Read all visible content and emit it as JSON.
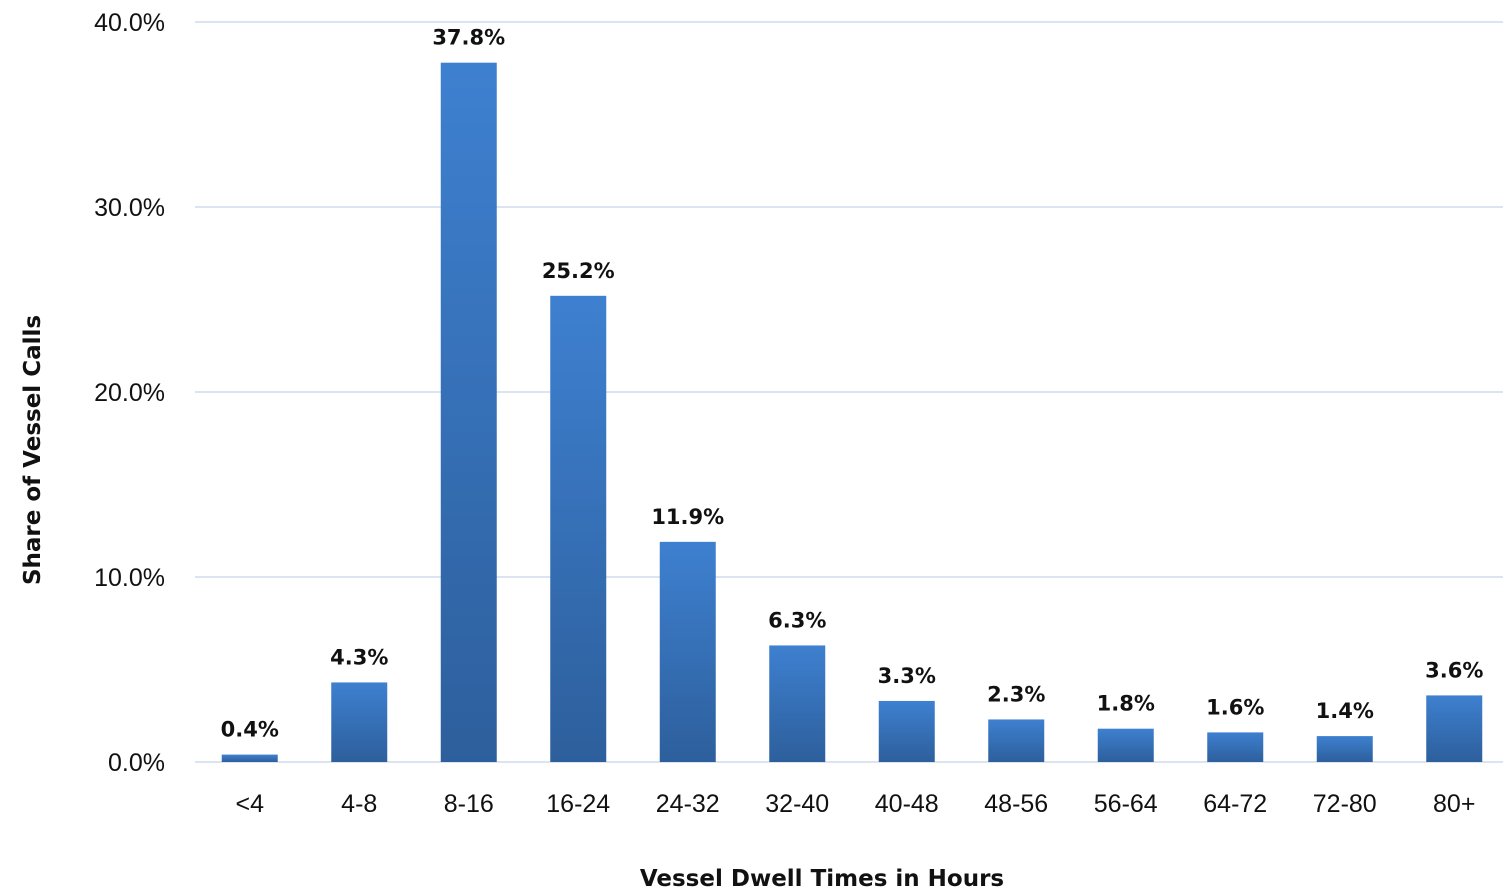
{
  "chart_data": {
    "type": "bar",
    "categories": [
      "<4",
      "4-8",
      "8-16",
      "16-24",
      "24-32",
      "32-40",
      "40-48",
      "48-56",
      "56-64",
      "64-72",
      "72-80",
      "80+"
    ],
    "values": [
      0.4,
      4.3,
      37.8,
      25.2,
      11.9,
      6.3,
      3.3,
      2.3,
      1.8,
      1.6,
      1.4,
      3.6
    ],
    "data_labels": [
      "0.4%",
      "4.3%",
      "37.8%",
      "25.2%",
      "11.9%",
      "6.3%",
      "3.3%",
      "2.3%",
      "1.8%",
      "1.6%",
      "1.4%",
      "3.6%"
    ],
    "title": "",
    "xlabel": "Vessel Dwell Times in Hours",
    "ylabel": "Share of Vessel Calls",
    "ylim": [
      0,
      40
    ],
    "yticks": [
      0,
      10,
      20,
      30,
      40
    ],
    "ytick_labels": [
      "0.0%",
      "10.0%",
      "20.0%",
      "30.0%",
      "40.0%"
    ],
    "grid": true,
    "legend": "none",
    "colors": {
      "bar_top": "#3e80d0",
      "bar_bottom": "#2d5f9c",
      "gridline": "#cfdcec",
      "text": "#111111"
    }
  }
}
